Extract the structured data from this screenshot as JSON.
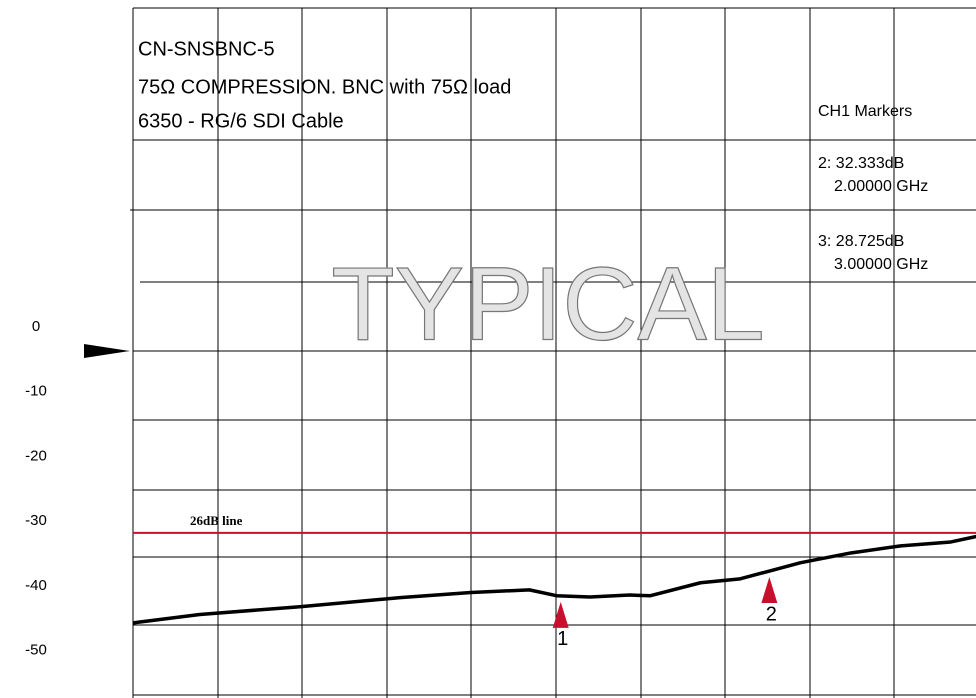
{
  "chart_data": {
    "type": "line",
    "title_lines": [
      "CN-SNSBNC-5",
      "75Ω COMPRESSION. BNC with 75Ω load",
      "6350 - RG/6 SDI Cable"
    ],
    "watermark": "TYPICAL",
    "marker_panel": {
      "title": "CH1 Markers",
      "entries": [
        {
          "value": "2: 32.333dB",
          "freq": "2.00000 GHz"
        },
        {
          "value": "3: 28.725dB",
          "freq": "3.00000 GHz"
        }
      ]
    },
    "x": [
      -1.05,
      -0.73,
      -0.25,
      0.23,
      0.57,
      0.85,
      0.98,
      1.14,
      1.33,
      1.43,
      1.67,
      1.86,
      2.15,
      2.39,
      2.63,
      2.87,
      3.0
    ],
    "series": [
      {
        "name": "CH1",
        "color": "#000000",
        "values": [
          -45.7,
          -44.4,
          -43.2,
          -41.8,
          -41.0,
          -40.6,
          -41.5,
          -41.7,
          -41.4,
          -41.5,
          -39.5,
          -38.9,
          -36.4,
          -34.9,
          -33.8,
          -33.2,
          -32.3
        ]
      }
    ],
    "reference_line": {
      "value": -31.8,
      "label": "26dB line",
      "color": "#c8102e"
    },
    "markers": [
      {
        "label": "1",
        "x": 1.0
      },
      {
        "label": "2",
        "x": 2.0
      }
    ],
    "marker_color": "#c8102e",
    "xlim": [
      -1.05,
      3.0
    ],
    "ylim": [
      -57.3,
      50.5
    ],
    "yticks": [
      0,
      -10,
      -20,
      -30,
      -40,
      -50
    ]
  }
}
